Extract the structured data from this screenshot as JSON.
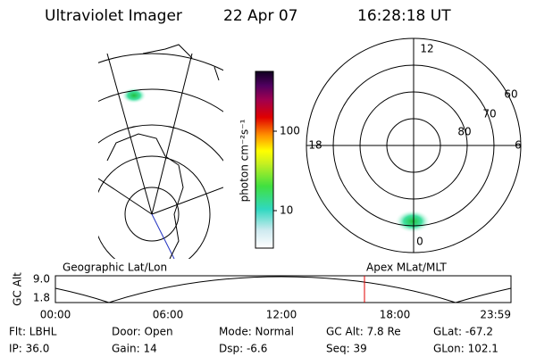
{
  "header": {
    "instrument": "Ultraviolet Imager",
    "date": "22 Apr 07",
    "time": "16:28:18 UT"
  },
  "colorbar": {
    "label": "photon cm⁻²s⁻¹",
    "ticks": [
      "100",
      "10"
    ]
  },
  "polar_plot": {
    "mlt_labels": [
      "12",
      "6",
      "0",
      "18"
    ],
    "lat_labels": [
      "60",
      "70",
      "80"
    ]
  },
  "orbit_plot": {
    "left_label": "Geographic Lat/Lon",
    "right_label": "Apex MLat/MLT",
    "y_label": "GC Alt",
    "y_ticks": [
      "9.0",
      "1.8"
    ],
    "x_ticks": [
      "00:00",
      "06:00",
      "12:00",
      "18:00",
      "23:59"
    ]
  },
  "info": {
    "rows": [
      [
        "Flt: LBHL",
        "Door: Open",
        "Mode: Normal",
        "GC Alt: 7.8 Re",
        "GLat: -67.2"
      ],
      [
        "IP: 36.0",
        "Gain: 14",
        "Dsp: -6.6",
        "Seq: 39",
        "GLon: 102.1"
      ]
    ]
  }
}
